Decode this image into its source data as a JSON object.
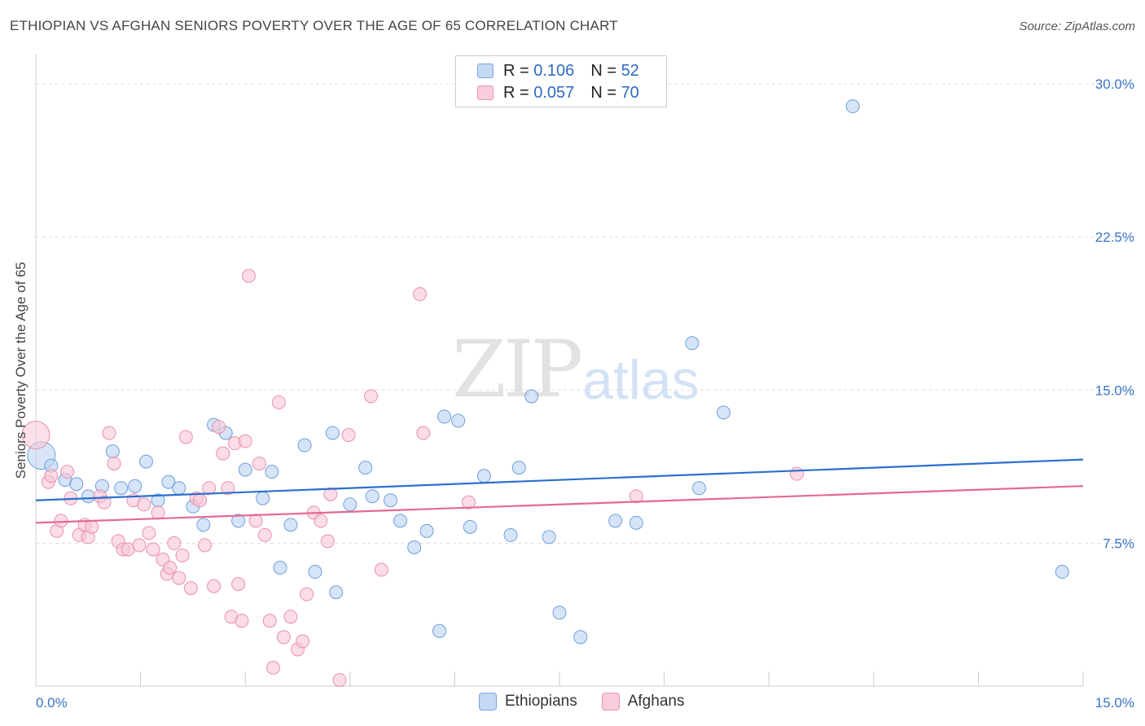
{
  "title": "ETHIOPIAN VS AFGHAN SENIORS POVERTY OVER THE AGE OF 65 CORRELATION CHART",
  "source": "Source: ZipAtlas.com",
  "watermark": {
    "zip": "ZIP",
    "atlas": "atlas"
  },
  "legend": {
    "r_label": "R = ",
    "n_label": "N = ",
    "rows": [
      {
        "r": "0.106",
        "n": "52",
        "color": "#a9c7ee",
        "border": "#7ba5de"
      },
      {
        "r": "0.057",
        "n": "70",
        "color": "#f7bfd0",
        "border": "#ea94b0"
      }
    ]
  },
  "colors": {
    "blue_fill": "#b9d2f2",
    "blue_stroke": "#6f9fdc",
    "blue_line": "#2c6fcf",
    "pink_fill": "#f8c6d5",
    "pink_stroke": "#e98fae",
    "pink_line": "#e36a94",
    "tick_text": "#3a74c6",
    "grid": "#dddddd"
  },
  "chart_data": {
    "type": "scatter",
    "xlabel": "",
    "ylabel": "Seniors Poverty Over the Age of 65",
    "xlim": [
      0,
      15
    ],
    "ylim": [
      0.5,
      31.0
    ],
    "x_tick_labels": [
      {
        "value": 0,
        "label": "0.0%"
      },
      {
        "value": 15,
        "label": "15.0%"
      }
    ],
    "y_tick_labels": [
      {
        "value": 7.5,
        "label": "7.5%"
      },
      {
        "value": 15,
        "label": "15.0%"
      },
      {
        "value": 22.5,
        "label": "22.5%"
      },
      {
        "value": 30,
        "label": "30.0%"
      }
    ],
    "x_minor_ticks": [
      1.5,
      3.0,
      4.5,
      6.0,
      7.5,
      9.0,
      10.5,
      12.0,
      13.5,
      15.0
    ],
    "grid": true,
    "legend_position": "top-center",
    "series": [
      {
        "name": "Ethiopians",
        "color": "#b9d2f2",
        "trend": {
          "x0": 0,
          "y0": 9.6,
          "x1": 15,
          "y1": 11.6
        },
        "points": [
          [
            0.08,
            11.8,
            "big"
          ],
          [
            0.22,
            11.3
          ],
          [
            0.42,
            10.6
          ],
          [
            0.58,
            10.4
          ],
          [
            0.75,
            9.8
          ],
          [
            0.95,
            10.3
          ],
          [
            1.1,
            12.0
          ],
          [
            1.22,
            10.2
          ],
          [
            1.42,
            10.3
          ],
          [
            1.58,
            11.5
          ],
          [
            1.75,
            9.6
          ],
          [
            1.9,
            10.5
          ],
          [
            2.05,
            10.2
          ],
          [
            2.25,
            9.3
          ],
          [
            2.4,
            8.4
          ],
          [
            2.55,
            13.3
          ],
          [
            2.72,
            12.9
          ],
          [
            2.9,
            8.6
          ],
          [
            3.0,
            11.1
          ],
          [
            3.25,
            9.7
          ],
          [
            3.38,
            11.0
          ],
          [
            3.5,
            6.3
          ],
          [
            3.65,
            8.4
          ],
          [
            3.85,
            12.3
          ],
          [
            4.0,
            6.1
          ],
          [
            4.25,
            12.9
          ],
          [
            4.3,
            5.1
          ],
          [
            4.5,
            9.4
          ],
          [
            4.72,
            11.2
          ],
          [
            4.82,
            9.8
          ],
          [
            5.08,
            9.6
          ],
          [
            5.22,
            8.6
          ],
          [
            5.42,
            7.3
          ],
          [
            5.6,
            8.1
          ],
          [
            5.78,
            3.2
          ],
          [
            5.85,
            13.7
          ],
          [
            6.05,
            13.5
          ],
          [
            6.22,
            8.3
          ],
          [
            6.42,
            10.8
          ],
          [
            6.8,
            7.9
          ],
          [
            6.92,
            11.2
          ],
          [
            7.1,
            14.7
          ],
          [
            7.35,
            7.8
          ],
          [
            7.5,
            4.1
          ],
          [
            7.8,
            2.9
          ],
          [
            8.3,
            8.6
          ],
          [
            8.6,
            8.5
          ],
          [
            9.4,
            17.3
          ],
          [
            9.5,
            10.2
          ],
          [
            9.85,
            13.9
          ],
          [
            11.7,
            28.9
          ],
          [
            14.7,
            6.1
          ]
        ]
      },
      {
        "name": "Afghans",
        "color": "#f8c6d5",
        "trend": {
          "x0": 0,
          "y0": 8.5,
          "x1": 15,
          "y1": 10.3
        },
        "points": [
          [
            0.0,
            12.8,
            "big"
          ],
          [
            0.18,
            10.5
          ],
          [
            0.22,
            10.8
          ],
          [
            0.3,
            8.1
          ],
          [
            0.36,
            8.6
          ],
          [
            0.45,
            11.0
          ],
          [
            0.5,
            9.7
          ],
          [
            0.62,
            7.9
          ],
          [
            0.7,
            8.4
          ],
          [
            0.75,
            7.8
          ],
          [
            0.8,
            8.3
          ],
          [
            0.92,
            9.8
          ],
          [
            0.98,
            9.5
          ],
          [
            1.05,
            12.9
          ],
          [
            1.12,
            11.4
          ],
          [
            1.18,
            7.6
          ],
          [
            1.25,
            7.2
          ],
          [
            1.32,
            7.2
          ],
          [
            1.4,
            9.6
          ],
          [
            1.48,
            7.4
          ],
          [
            1.55,
            9.4
          ],
          [
            1.62,
            8.0
          ],
          [
            1.68,
            7.2
          ],
          [
            1.75,
            9.0
          ],
          [
            1.82,
            6.7
          ],
          [
            1.88,
            6.0
          ],
          [
            1.92,
            6.3
          ],
          [
            1.98,
            7.5
          ],
          [
            2.05,
            5.8
          ],
          [
            2.1,
            6.9
          ],
          [
            2.15,
            12.7
          ],
          [
            2.22,
            5.3
          ],
          [
            2.3,
            9.7
          ],
          [
            2.35,
            9.6
          ],
          [
            2.42,
            7.4
          ],
          [
            2.48,
            10.2
          ],
          [
            2.55,
            5.4
          ],
          [
            2.62,
            13.2
          ],
          [
            2.68,
            11.9
          ],
          [
            2.75,
            10.2
          ],
          [
            2.8,
            3.9
          ],
          [
            2.85,
            12.4
          ],
          [
            2.9,
            5.5
          ],
          [
            2.95,
            3.7
          ],
          [
            3.0,
            12.5
          ],
          [
            3.05,
            20.6
          ],
          [
            3.15,
            8.6
          ],
          [
            3.2,
            11.4
          ],
          [
            3.28,
            7.9
          ],
          [
            3.35,
            3.7
          ],
          [
            3.4,
            1.4
          ],
          [
            3.48,
            14.4
          ],
          [
            3.55,
            2.9
          ],
          [
            3.65,
            3.9
          ],
          [
            3.75,
            2.3
          ],
          [
            3.82,
            2.7
          ],
          [
            3.88,
            5.0
          ],
          [
            3.98,
            9.0
          ],
          [
            4.08,
            8.6
          ],
          [
            4.18,
            7.6
          ],
          [
            4.22,
            9.9
          ],
          [
            4.35,
            0.8
          ],
          [
            4.48,
            12.8
          ],
          [
            4.8,
            14.7
          ],
          [
            4.95,
            6.2
          ],
          [
            5.5,
            19.7
          ],
          [
            5.55,
            12.9
          ],
          [
            6.2,
            9.5
          ],
          [
            8.6,
            9.8
          ],
          [
            10.9,
            10.9
          ]
        ]
      }
    ]
  }
}
